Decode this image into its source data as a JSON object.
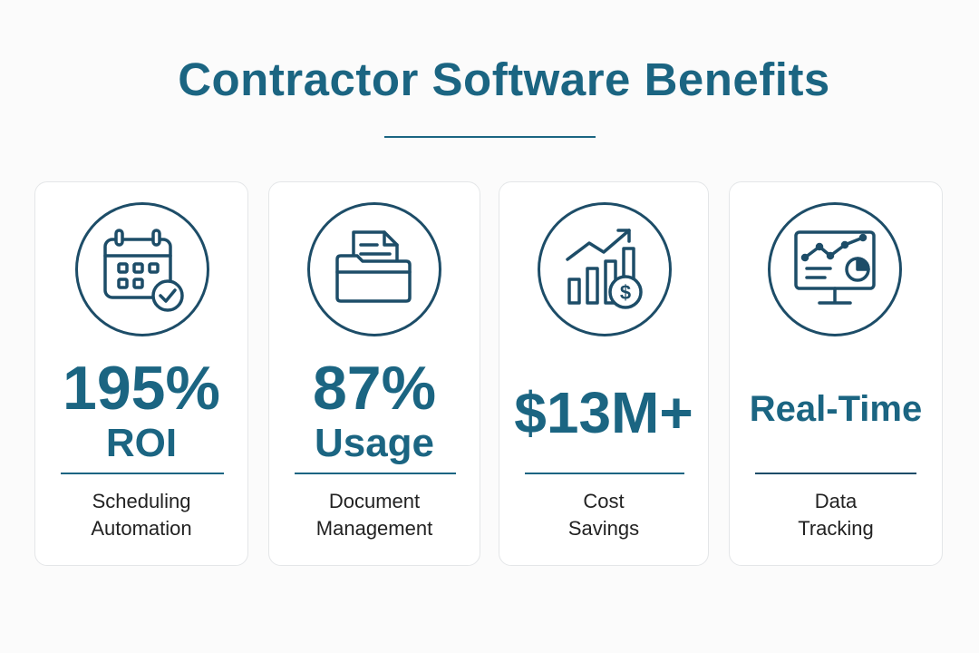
{
  "title": "Contractor Software Benefits",
  "colors": {
    "primary": "#1b6582",
    "dark": "#1d4d68",
    "text": "#222222",
    "card_border": "#e4e6e8",
    "background": "#fbfbfb"
  },
  "cards": [
    {
      "icon": "calendar-check-icon",
      "stat_line1": "195%",
      "stat_line2": "ROI",
      "desc_line1": "Scheduling",
      "desc_line2": "Automation"
    },
    {
      "icon": "document-folder-icon",
      "stat_line1": "87%",
      "stat_line2": "Usage",
      "desc_line1": "Document",
      "desc_line2": "Management"
    },
    {
      "icon": "growth-chart-dollar-icon",
      "stat": "$13M+",
      "desc_line1": "Cost",
      "desc_line2": "Savings"
    },
    {
      "icon": "monitor-analytics-icon",
      "stat": "Real-Time",
      "desc_line1": "Data",
      "desc_line2": "Tracking"
    }
  ]
}
